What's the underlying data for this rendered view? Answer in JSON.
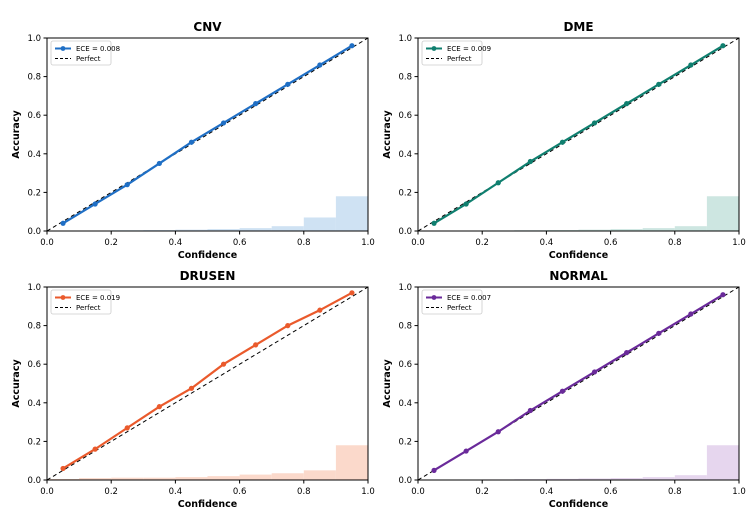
{
  "chart_data": [
    {
      "type": "line",
      "title": "CNV",
      "xlabel": "Confidence",
      "ylabel": "Accuracy",
      "xlim": [
        0,
        1
      ],
      "ylim": [
        0,
        1
      ],
      "xticks": [
        "0.0",
        "0.2",
        "0.4",
        "0.6",
        "0.8",
        "1.0"
      ],
      "yticks": [
        "0.0",
        "0.2",
        "0.4",
        "0.6",
        "0.8",
        "1.0"
      ],
      "color": "#1f6fc5",
      "hist_color": "#cfe2f3",
      "legend_position": "top-left",
      "series": [
        {
          "name": "ECE = 0.008",
          "x": [
            0.05,
            0.15,
            0.25,
            0.35,
            0.45,
            0.55,
            0.65,
            0.75,
            0.85,
            0.95
          ],
          "y": [
            0.04,
            0.14,
            0.24,
            0.35,
            0.46,
            0.56,
            0.66,
            0.76,
            0.86,
            0.96
          ]
        },
        {
          "name": "Perfect",
          "x": [
            0,
            1
          ],
          "y": [
            0,
            1
          ]
        }
      ],
      "histogram": {
        "bin_edges": [
          0,
          0.1,
          0.2,
          0.3,
          0.4,
          0.5,
          0.6,
          0.7,
          0.8,
          0.9,
          1.0
        ],
        "heights": [
          0.0,
          0.002,
          0.004,
          0.005,
          0.007,
          0.01,
          0.015,
          0.025,
          0.07,
          0.18
        ]
      }
    },
    {
      "type": "line",
      "title": "DME",
      "xlabel": "Confidence",
      "ylabel": "Accuracy",
      "xlim": [
        0,
        1
      ],
      "ylim": [
        0,
        1
      ],
      "xticks": [
        "0.0",
        "0.2",
        "0.4",
        "0.6",
        "0.8",
        "1.0"
      ],
      "yticks": [
        "0.0",
        "0.2",
        "0.4",
        "0.6",
        "0.8",
        "1.0"
      ],
      "color": "#0f7f6f",
      "hist_color": "#cde6e1",
      "legend_position": "top-left",
      "series": [
        {
          "name": "ECE = 0.009",
          "x": [
            0.05,
            0.15,
            0.25,
            0.35,
            0.45,
            0.55,
            0.65,
            0.75,
            0.85,
            0.95
          ],
          "y": [
            0.04,
            0.14,
            0.25,
            0.36,
            0.46,
            0.56,
            0.66,
            0.76,
            0.86,
            0.96
          ]
        },
        {
          "name": "Perfect",
          "x": [
            0,
            1
          ],
          "y": [
            0,
            1
          ]
        }
      ],
      "histogram": {
        "bin_edges": [
          0,
          0.1,
          0.2,
          0.3,
          0.4,
          0.5,
          0.6,
          0.7,
          0.8,
          0.9,
          1.0
        ],
        "heights": [
          0.0,
          0.002,
          0.003,
          0.004,
          0.005,
          0.007,
          0.01,
          0.015,
          0.025,
          0.18
        ]
      }
    },
    {
      "type": "line",
      "title": "DRUSEN",
      "xlabel": "Confidence",
      "ylabel": "Accuracy",
      "xlim": [
        0,
        1
      ],
      "ylim": [
        0,
        1
      ],
      "xticks": [
        "0.0",
        "0.2",
        "0.4",
        "0.6",
        "0.8",
        "1.0"
      ],
      "yticks": [
        "0.0",
        "0.2",
        "0.4",
        "0.6",
        "0.8",
        "1.0"
      ],
      "color": "#ea5a2c",
      "hist_color": "#fbd9cb",
      "legend_position": "top-left",
      "series": [
        {
          "name": "ECE = 0.019",
          "x": [
            0.05,
            0.15,
            0.25,
            0.35,
            0.45,
            0.55,
            0.65,
            0.75,
            0.85,
            0.95
          ],
          "y": [
            0.06,
            0.16,
            0.27,
            0.38,
            0.475,
            0.6,
            0.7,
            0.8,
            0.88,
            0.97
          ]
        },
        {
          "name": "Perfect",
          "x": [
            0,
            1
          ],
          "y": [
            0,
            1
          ]
        }
      ],
      "histogram": {
        "bin_edges": [
          0,
          0.1,
          0.2,
          0.3,
          0.4,
          0.5,
          0.6,
          0.7,
          0.8,
          0.9,
          1.0
        ],
        "heights": [
          0.005,
          0.01,
          0.012,
          0.012,
          0.015,
          0.02,
          0.028,
          0.035,
          0.05,
          0.18
        ]
      }
    },
    {
      "type": "line",
      "title": "NORMAL",
      "xlabel": "Confidence",
      "ylabel": "Accuracy",
      "xlim": [
        0,
        1
      ],
      "ylim": [
        0,
        1
      ],
      "xticks": [
        "0.0",
        "0.2",
        "0.4",
        "0.6",
        "0.8",
        "1.0"
      ],
      "yticks": [
        "0.0",
        "0.2",
        "0.4",
        "0.6",
        "0.8",
        "1.0"
      ],
      "color": "#6a2a9a",
      "hist_color": "#e6d6ee",
      "legend_position": "top-left",
      "series": [
        {
          "name": "ECE = 0.007",
          "x": [
            0.05,
            0.15,
            0.25,
            0.35,
            0.45,
            0.55,
            0.65,
            0.75,
            0.85,
            0.95
          ],
          "y": [
            0.05,
            0.15,
            0.25,
            0.36,
            0.46,
            0.56,
            0.66,
            0.76,
            0.86,
            0.96
          ]
        },
        {
          "name": "Perfect",
          "x": [
            0,
            1
          ],
          "y": [
            0,
            1
          ]
        }
      ],
      "histogram": {
        "bin_edges": [
          0,
          0.1,
          0.2,
          0.3,
          0.4,
          0.5,
          0.6,
          0.7,
          0.8,
          0.9,
          1.0
        ],
        "heights": [
          0.0,
          0.002,
          0.003,
          0.004,
          0.006,
          0.008,
          0.01,
          0.015,
          0.025,
          0.18
        ]
      }
    }
  ]
}
